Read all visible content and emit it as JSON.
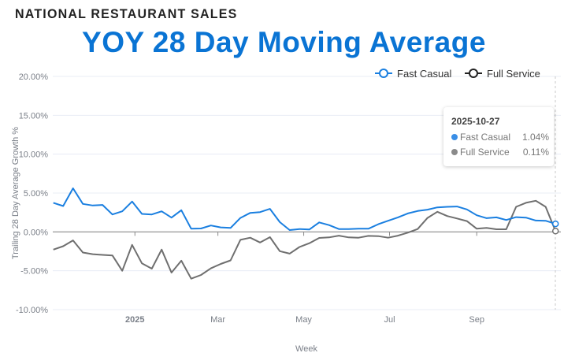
{
  "header": {
    "kicker": "NATIONAL RESTAURANT SALES",
    "title": "YOY 28 Day Moving Average"
  },
  "chart_data": {
    "type": "line",
    "title": "YOY 28 Day Moving Average",
    "xlabel": "Week",
    "ylabel": "Trailing 28 Day Average Growth %",
    "x_start": "2024-11-04",
    "x_end": "2025-10-27",
    "x_interval": "weekly",
    "x_tick_labels": [
      {
        "date": "2025-01-01",
        "label": "2025"
      },
      {
        "date": "2025-03-01",
        "label": "Mar"
      },
      {
        "date": "2025-05-01",
        "label": "May"
      },
      {
        "date": "2025-07-01",
        "label": "Jul"
      },
      {
        "date": "2025-09-01",
        "label": "Sep"
      }
    ],
    "ylim": [
      -10,
      20
    ],
    "y_ticks": [
      20,
      15,
      10,
      5,
      0,
      -5,
      -10
    ],
    "y_tick_labels": [
      "20.00%",
      "15.00%",
      "10.00%",
      "5.00%",
      "0.00%",
      "-5.00%",
      "-10.00%"
    ],
    "grid": true,
    "legend": "top-right",
    "series": [
      {
        "name": "Fast Casual",
        "color": "#1a7fe0",
        "values": [
          3.74,
          3.33,
          5.61,
          3.6,
          3.4,
          3.47,
          2.24,
          2.65,
          3.91,
          2.31,
          2.24,
          2.65,
          1.84,
          2.79,
          0.41,
          0.44,
          0.82,
          0.58,
          0.51,
          1.8,
          2.45,
          2.55,
          2.96,
          1.26,
          0.24,
          0.37,
          0.31,
          1.22,
          0.88,
          0.37,
          0.37,
          0.41,
          0.41,
          0.99,
          1.43,
          1.87,
          2.38,
          2.69,
          2.86,
          3.16,
          3.23,
          3.27,
          2.89,
          2.14,
          1.77,
          1.87,
          1.53,
          1.9,
          1.84,
          1.46,
          1.43,
          1.04
        ]
      },
      {
        "name": "Full Service",
        "color": "#6f6f6f",
        "values": [
          -2.28,
          -1.84,
          -1.09,
          -2.65,
          -2.86,
          -2.96,
          -3.03,
          -5.0,
          -1.67,
          -4.05,
          -4.73,
          -2.28,
          -5.24,
          -3.71,
          -6.02,
          -5.54,
          -4.69,
          -4.12,
          -3.67,
          -1.02,
          -0.75,
          -1.36,
          -0.68,
          -2.48,
          -2.79,
          -1.94,
          -1.46,
          -0.78,
          -0.71,
          -0.48,
          -0.71,
          -0.75,
          -0.51,
          -0.54,
          -0.75,
          -0.48,
          -0.1,
          0.37,
          1.8,
          2.59,
          2.04,
          1.73,
          1.39,
          0.41,
          0.51,
          0.34,
          0.34,
          3.23,
          3.74,
          4.01,
          3.23,
          0.11
        ]
      }
    ],
    "tooltip": {
      "date": "2025-10-27",
      "rows": [
        {
          "name": "Fast Casual",
          "value": "1.04%",
          "color": "#3a8ee6"
        },
        {
          "name": "Full Service",
          "value": "0.11%",
          "color": "#8a8a8a"
        }
      ]
    }
  }
}
